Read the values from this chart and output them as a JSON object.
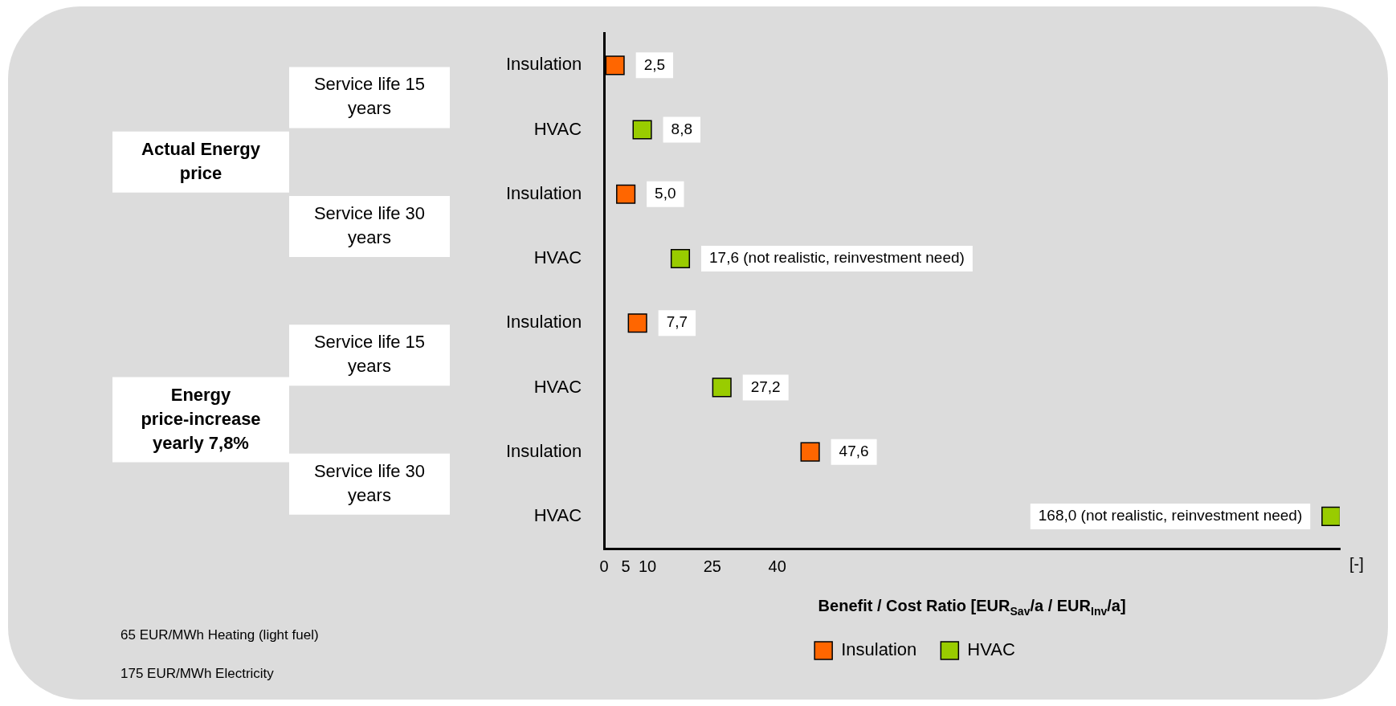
{
  "chart_data": {
    "type": "scatter",
    "orientation": "horizontal",
    "categories": [
      "Insulation",
      "HVAC",
      "Insulation",
      "HVAC",
      "Insulation",
      "HVAC",
      "Insulation",
      "HVAC"
    ],
    "series": [
      {
        "name": "Insulation",
        "color": "#ff6600",
        "values": [
          2.5,
          null,
          5.0,
          null,
          7.7,
          null,
          47.6,
          null
        ],
        "value_labels": [
          "2,5",
          null,
          "5,0",
          null,
          "7,7",
          null,
          "47,6",
          null
        ]
      },
      {
        "name": "HVAC",
        "color": "#99cc00",
        "values": [
          null,
          8.8,
          null,
          17.6,
          null,
          27.2,
          null,
          168.0
        ],
        "value_labels": [
          null,
          "8,8",
          null,
          "17,6 (not realistic, reinvestment need)",
          null,
          "27,2",
          null,
          "168,0 (not realistic, reinvestment need)"
        ]
      }
    ],
    "xlim": [
      0,
      170
    ],
    "xticks": [
      0,
      5,
      10,
      25,
      40
    ],
    "xlabel": "Benefit / Cost Ratio [EUR$_{Sav}$/a / EUR$_{Inv}$/a]",
    "marker": "square",
    "legend": "bottom",
    "grid": false,
    "annotations": [
      "Actual Energy price",
      "Energy price-increase yearly 7,8%",
      "Service life 15 years",
      "Service life 30 years",
      "Service life 15 years",
      "Service life 30 years",
      "[-]",
      "65 EUR/MWh Heating (light fuel)",
      "175 EUR/MWh Electricity"
    ]
  }
}
